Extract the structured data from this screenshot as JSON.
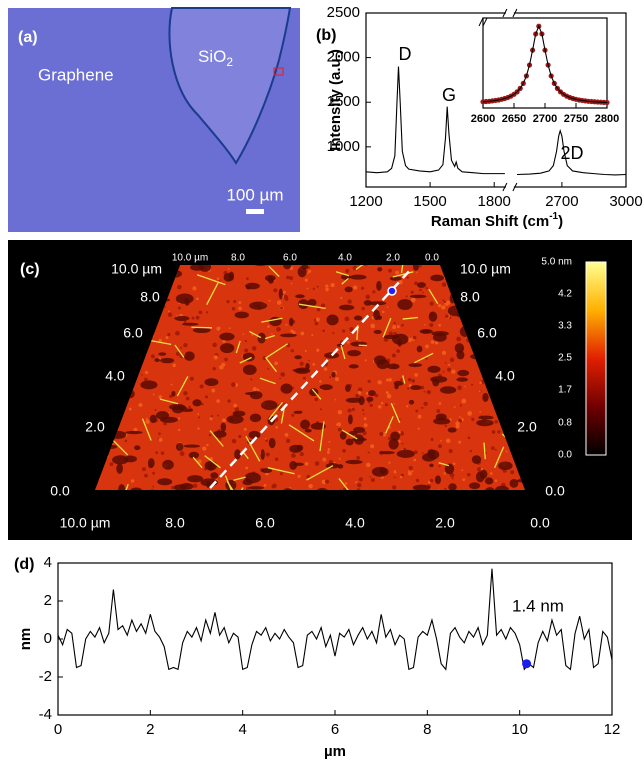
{
  "panel_a": {
    "label": "(a)",
    "graphene": "Graphene",
    "sio2": {
      "text": "SiO",
      "sub": "2"
    },
    "scale_bar": "100 µm"
  },
  "panel_c": {
    "label": "(c)",
    "top_ticks": [
      "10.0 µm",
      "8.0",
      "6.0",
      "4.0",
      "2.0",
      "0.0"
    ],
    "left_ticks": [
      "0.0",
      "2.0",
      "4.0",
      "6.0",
      "8.0",
      "10.0 µm"
    ],
    "right_ticks": [
      "0.0",
      "2.0",
      "4.0",
      "6.0",
      "8.0",
      "10.0 µm"
    ],
    "bottom_ticks": [
      "10.0 µm",
      "8.0",
      "6.0",
      "4.0",
      "2.0",
      "0.0"
    ],
    "colorbar_ticks": [
      "5.0 nm",
      "4.2",
      "3.3",
      "2.5",
      "1.7",
      "0.8",
      "0.0"
    ]
  },
  "chart_data": [
    {
      "type": "line",
      "label": "(b)",
      "ylabel": "Intensity (a.u.)",
      "xlabel": {
        "text": "Raman Shift (cm",
        "sup": "-1",
        "tail": ")"
      },
      "xlim": [
        1200,
        3000
      ],
      "xbreak": [
        1850,
        2480
      ],
      "ylim": [
        550,
        2500
      ],
      "xticks": [
        1200,
        1500,
        1800,
        2700,
        3000
      ],
      "yticks": [
        1000,
        1500,
        2000,
        2500
      ],
      "annotations": [
        "D",
        "G",
        "2D"
      ],
      "series": [
        {
          "color": "#000000",
          "x": [
            1200,
            1250,
            1300,
            1320,
            1335,
            1345,
            1352,
            1360,
            1370,
            1385,
            1400,
            1450,
            1500,
            1540,
            1560,
            1572,
            1580,
            1588,
            1600,
            1615,
            1622,
            1630,
            1650,
            1700,
            1750,
            1800,
            1850
          ],
          "values": [
            720,
            710,
            720,
            760,
            900,
            1500,
            1900,
            1500,
            950,
            790,
            750,
            730,
            720,
            740,
            800,
            1100,
            1450,
            1150,
            850,
            780,
            830,
            760,
            720,
            710,
            700,
            700,
            700
          ]
        },
        {
          "color": "#000000",
          "x": [
            2490,
            2550,
            2600,
            2640,
            2660,
            2675,
            2685,
            2692,
            2700,
            2710,
            2725,
            2750,
            2800,
            2850,
            2900,
            2950,
            3000
          ],
          "values": [
            690,
            695,
            705,
            730,
            790,
            950,
            1120,
            1180,
            1120,
            950,
            790,
            730,
            710,
            700,
            690,
            685,
            690
          ]
        }
      ]
    },
    {
      "type": "line",
      "xlim": [
        2600,
        2800
      ],
      "ylim": [
        0,
        1.1
      ],
      "xticks": [
        2600,
        2650,
        2700,
        2750,
        2800
      ],
      "series": [
        {
          "color": "#a01818",
          "style": "points",
          "x": [
            2600,
            2605,
            2610,
            2615,
            2620,
            2625,
            2630,
            2635,
            2640,
            2645,
            2650,
            2655,
            2660,
            2665,
            2670,
            2675,
            2680,
            2685,
            2690,
            2695,
            2700,
            2705,
            2710,
            2715,
            2720,
            2725,
            2730,
            2735,
            2740,
            2745,
            2750,
            2755,
            2760,
            2765,
            2770,
            2775,
            2780,
            2785,
            2790,
            2795,
            2800
          ],
          "values": [
            0.076,
            0.079,
            0.082,
            0.087,
            0.092,
            0.098,
            0.106,
            0.116,
            0.128,
            0.145,
            0.167,
            0.197,
            0.24,
            0.301,
            0.392,
            0.525,
            0.707,
            0.905,
            1.0,
            0.905,
            0.707,
            0.525,
            0.392,
            0.301,
            0.24,
            0.197,
            0.167,
            0.145,
            0.128,
            0.116,
            0.106,
            0.098,
            0.092,
            0.087,
            0.082,
            0.079,
            0.076,
            0.073,
            0.071,
            0.069,
            0.067
          ]
        },
        {
          "color": "#000000",
          "x": [
            2600,
            2605,
            2610,
            2615,
            2620,
            2625,
            2630,
            2635,
            2640,
            2645,
            2650,
            2655,
            2660,
            2665,
            2670,
            2675,
            2680,
            2685,
            2690,
            2695,
            2700,
            2705,
            2710,
            2715,
            2720,
            2725,
            2730,
            2735,
            2740,
            2745,
            2750,
            2755,
            2760,
            2765,
            2770,
            2775,
            2780,
            2785,
            2790,
            2795,
            2800
          ],
          "values": [
            0.076,
            0.079,
            0.082,
            0.087,
            0.092,
            0.098,
            0.106,
            0.116,
            0.128,
            0.145,
            0.167,
            0.197,
            0.24,
            0.301,
            0.392,
            0.525,
            0.707,
            0.905,
            1.0,
            0.905,
            0.707,
            0.525,
            0.392,
            0.301,
            0.24,
            0.197,
            0.167,
            0.145,
            0.128,
            0.116,
            0.106,
            0.098,
            0.092,
            0.087,
            0.082,
            0.079,
            0.076,
            0.073,
            0.071,
            0.069,
            0.067
          ]
        }
      ]
    },
    {
      "type": "line",
      "label": "(d)",
      "xlabel": "µm",
      "ylabel": "nm",
      "xlim": [
        0,
        12
      ],
      "ylim": [
        -4,
        4
      ],
      "xticks": [
        0,
        2,
        4,
        6,
        8,
        10,
        12
      ],
      "yticks": [
        -4,
        -2,
        0,
        2,
        4
      ],
      "annotation": "1.4 nm",
      "marker": {
        "x": 10.15,
        "y": -1.3,
        "color": "#1c1cf0"
      },
      "series": [
        {
          "color": "#000000",
          "x": [
            0,
            0.1,
            0.2,
            0.3,
            0.4,
            0.5,
            0.6,
            0.7,
            0.8,
            0.9,
            1,
            1.1,
            1.2,
            1.3,
            1.4,
            1.5,
            1.6,
            1.7,
            1.8,
            1.9,
            2,
            2.1,
            2.2,
            2.3,
            2.4,
            2.5,
            2.6,
            2.7,
            2.8,
            2.9,
            3,
            3.1,
            3.2,
            3.3,
            3.4,
            3.5,
            3.6,
            3.7,
            3.8,
            3.9,
            4,
            4.1,
            4.2,
            4.3,
            4.4,
            4.5,
            4.6,
            4.7,
            4.8,
            4.9,
            5,
            5.1,
            5.2,
            5.3,
            5.4,
            5.5,
            5.6,
            5.7,
            5.8,
            5.9,
            6,
            6.1,
            6.2,
            6.3,
            6.4,
            6.5,
            6.6,
            6.7,
            6.8,
            6.9,
            7,
            7.1,
            7.2,
            7.3,
            7.4,
            7.5,
            7.6,
            7.7,
            7.8,
            7.9,
            8,
            8.1,
            8.2,
            8.3,
            8.4,
            8.5,
            8.6,
            8.7,
            8.8,
            8.9,
            9,
            9.1,
            9.2,
            9.3,
            9.4,
            9.5,
            9.6,
            9.7,
            9.8,
            9.9,
            10,
            10.1,
            10.2,
            10.3,
            10.4,
            10.5,
            10.6,
            10.7,
            10.8,
            10.9,
            11,
            11.1,
            11.2,
            11.3,
            11.4,
            11.5,
            11.6,
            11.7,
            11.8,
            11.9,
            12
          ],
          "values": [
            0.2,
            -0.3,
            0.5,
            0.3,
            -1.5,
            -1.4,
            0.0,
            0.4,
            0.1,
            0.6,
            -0.2,
            0.3,
            2.6,
            0.5,
            0.7,
            0.2,
            1.0,
            0.4,
            0.8,
            0.3,
            1.3,
            0.4,
            0.1,
            -0.4,
            -1.6,
            -1.5,
            -1.6,
            -0.2,
            0.4,
            0.1,
            0.6,
            -0.1,
            1.0,
            0.3,
            1.4,
            0.2,
            0.6,
            -0.2,
            0.3,
            0.1,
            -1.6,
            -1.5,
            -0.3,
            0.4,
            0.2,
            0.6,
            -0.1,
            0.3,
            0.0,
            0.5,
            0.1,
            -0.2,
            -1.5,
            -1.4,
            0.2,
            0.4,
            0.0,
            0.6,
            -0.4,
            0.2,
            -0.9,
            0.3,
            0.1,
            0.5,
            -0.3,
            0.2,
            0.6,
            0.0,
            0.4,
            -0.2,
            1.3,
            0.1,
            0.5,
            -0.3,
            0.2,
            0.0,
            -1.6,
            -1.5,
            0.1,
            0.4,
            0.2,
            1.0,
            0.0,
            -1.3,
            -1.6,
            0.3,
            0.6,
            0.1,
            -0.2,
            0.4,
            0.1,
            0.6,
            -0.3,
            0.2,
            3.7,
            0.2,
            0.5,
            0.0,
            0.6,
            0.3,
            -0.3,
            -1.6,
            -1.3,
            -1.5,
            -0.2,
            0.4,
            -0.1,
            1.0,
            0.2,
            0.5,
            -1.4,
            -1.6,
            0.3,
            1.2,
            0.0,
            0.5,
            -1.5,
            -1.3,
            0.4,
            0.1,
            -1.1
          ]
        }
      ]
    }
  ]
}
